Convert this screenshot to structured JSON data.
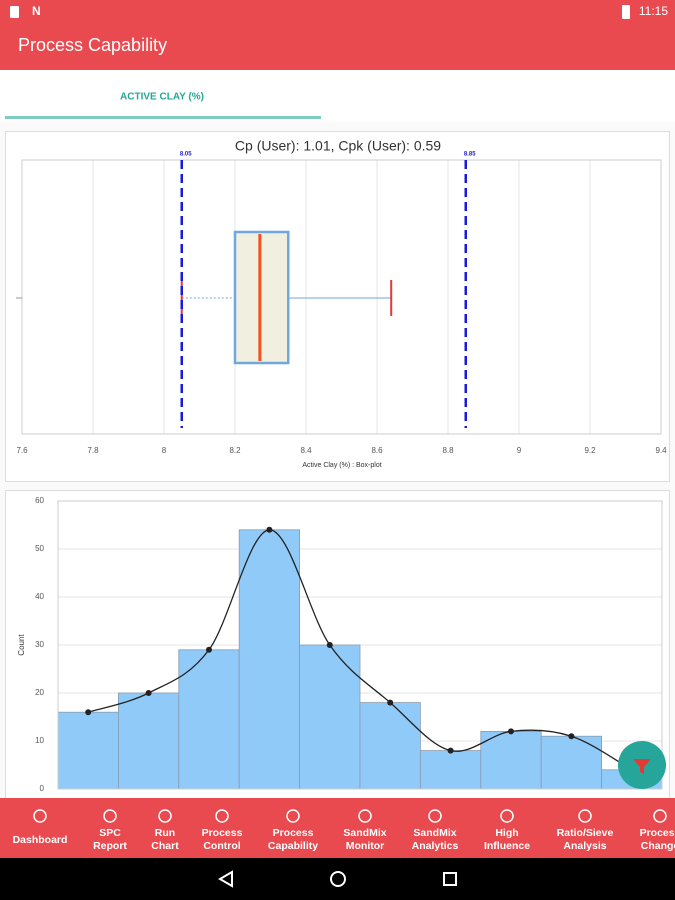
{
  "status_bar": {
    "time": "11:15"
  },
  "app_bar": {
    "title": "Process Capability"
  },
  "tabs": [
    "ACTIVE CLAY (%)"
  ],
  "chart_data": [
    {
      "type": "box",
      "title": "Cp (User): 1.01, Cpk (User): 0.59",
      "xlabel": "Active Clay (%) : Box-plot",
      "whisker_low": 8.05,
      "q1": 8.2,
      "median": 8.27,
      "q3": 8.35,
      "whisker_high": 8.64,
      "lsl": 8.05,
      "usl": 8.85,
      "xlim": [
        7.6,
        9.4
      ],
      "xticks": [
        7.6,
        7.8,
        8,
        8.2,
        8.4,
        8.6,
        8.8,
        9,
        9.2,
        9.4
      ],
      "box_color": "#f1efe0",
      "box_edge": "#6fa8dc",
      "median_color": "#f4511e",
      "whisker_color": "#6fa8dc",
      "cap_color": "#e53935",
      "spec_color": "#1a1adb",
      "grid": true
    },
    {
      "type": "histogram",
      "ylabel": "Count",
      "categories": [
        null,
        null,
        null,
        null,
        null,
        null,
        null,
        null,
        null,
        null
      ],
      "values": [
        16,
        20,
        29,
        54,
        30,
        18,
        8,
        12,
        11,
        4
      ],
      "color": "#90caf9",
      "curve_color": "#222222",
      "ylim": [
        0,
        60
      ],
      "yticks": [
        0,
        10,
        20,
        30,
        40,
        50,
        60
      ],
      "grid": true
    }
  ],
  "bottom_nav": [
    [
      "Dashboard"
    ],
    [
      "SPC",
      "Report"
    ],
    [
      "Run",
      "Chart"
    ],
    [
      "Process",
      "Control"
    ],
    [
      "Process",
      "Capability"
    ],
    [
      "SandMix",
      "Monitor"
    ],
    [
      "SandMix",
      "Analytics"
    ],
    [
      "High",
      "Influence"
    ],
    [
      "Ratio/Sieve",
      "Analysis"
    ],
    [
      "Process",
      "Change"
    ]
  ]
}
